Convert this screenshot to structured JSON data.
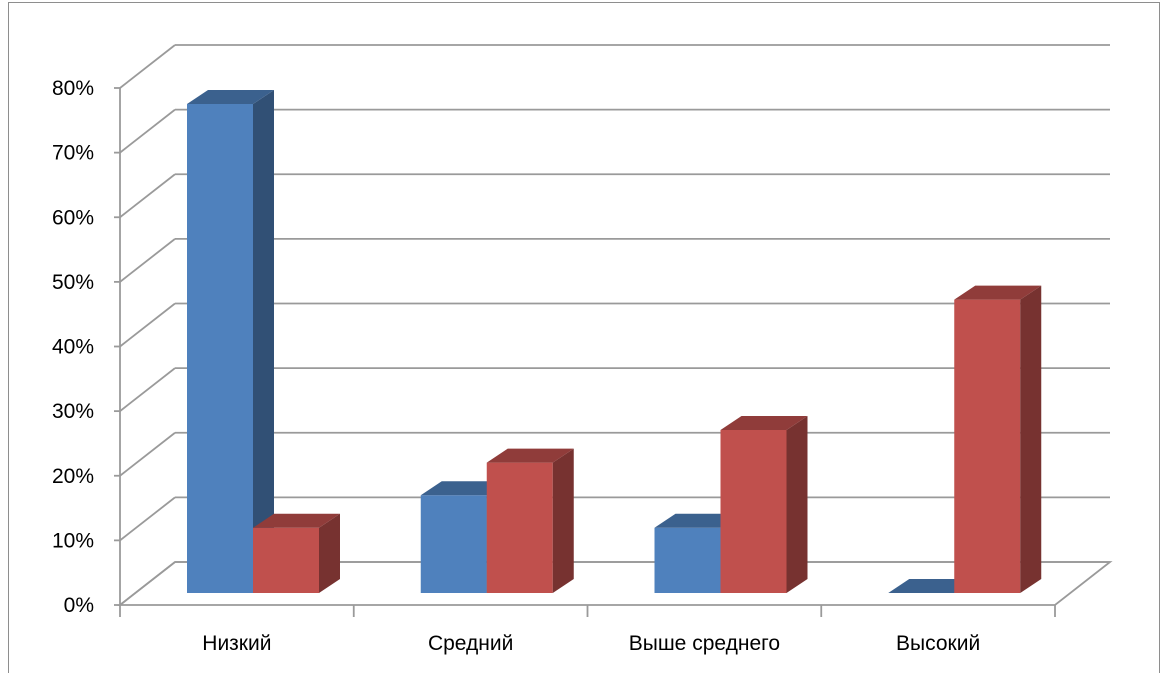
{
  "chart_data": {
    "type": "bar",
    "style": "3d-clustered-column",
    "title": "",
    "xlabel": "",
    "ylabel": "",
    "categories": [
      "Низкий",
      "Средний",
      "Выше среднего",
      "Высокий"
    ],
    "series": [
      {
        "values": [
          75,
          15,
          10,
          0
        ],
        "color": "#4f81bd"
      },
      {
        "values": [
          10,
          20,
          25,
          45
        ],
        "color": "#c0504d"
      }
    ],
    "ylim": [
      0,
      80
    ],
    "y_ticks": [
      "0%",
      "10%",
      "20%",
      "30%",
      "40%",
      "50%",
      "60%",
      "70%",
      "80%"
    ],
    "grid": true,
    "legend": "none"
  }
}
